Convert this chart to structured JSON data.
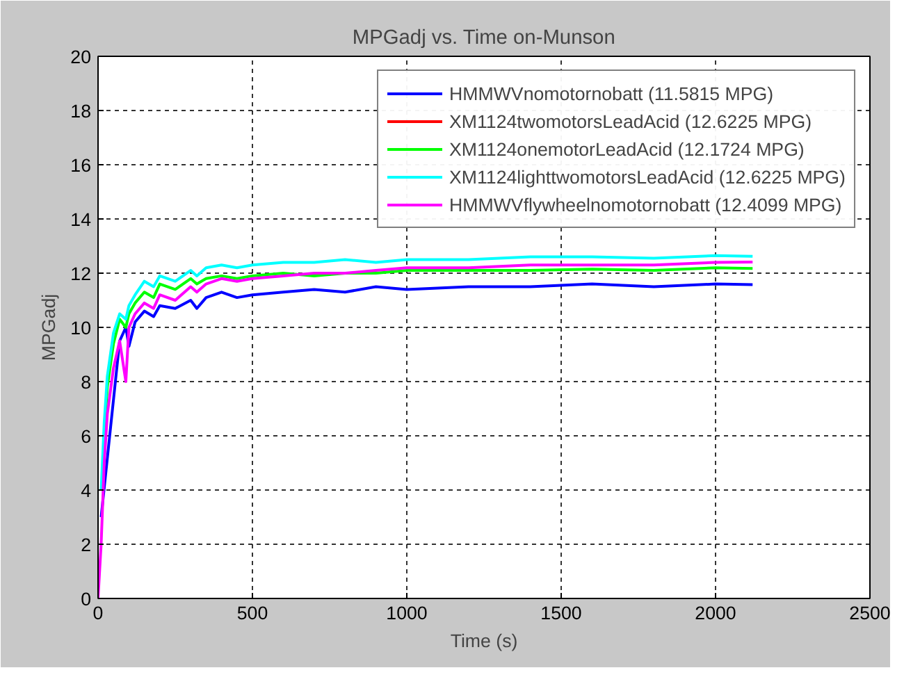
{
  "chart_data": {
    "type": "line",
    "title": "MPGadj vs. Time on-Munson",
    "xlabel": "Time (s)",
    "ylabel": "MPGadj",
    "x": [
      0,
      10,
      20,
      30,
      50,
      70,
      90,
      100,
      120,
      150,
      180,
      200,
      250,
      300,
      320,
      350,
      400,
      450,
      500,
      600,
      700,
      800,
      900,
      1000,
      1200,
      1400,
      1600,
      1800,
      2000,
      2120
    ],
    "xlim": [
      0,
      2500
    ],
    "xticks": [
      0,
      500,
      1000,
      1500,
      2000,
      2500
    ],
    "ylim": [
      0,
      20
    ],
    "yticks": [
      0,
      2,
      4,
      6,
      8,
      10,
      12,
      14,
      16,
      18,
      20
    ],
    "grid": true,
    "legend": "top right",
    "line_style": "solid",
    "marker": "none",
    "series": [
      {
        "name": "HMMWVnomotornobatt (11.5815 MPG)",
        "color": "#0000ff",
        "values": [
          null,
          3,
          null,
          null,
          null,
          9.5,
          10,
          9.3,
          10.2,
          10.6,
          10.4,
          10.8,
          10.7,
          11.0,
          10.7,
          11.1,
          11.3,
          11.1,
          11.2,
          11.3,
          11.4,
          11.3,
          11.5,
          11.4,
          11.5,
          11.5,
          11.6,
          11.5,
          11.6,
          11.58
        ]
      },
      {
        "name": "XM1124twomotorsLeadAcid (12.6225 MPG)",
        "color": "#ff0000",
        "values": [
          null,
          null,
          null,
          null,
          null,
          null,
          null,
          null,
          null,
          null,
          null,
          null,
          null,
          null,
          null,
          null,
          null,
          null,
          null,
          null,
          null,
          null,
          null,
          null,
          null,
          null,
          null,
          null,
          null,
          null
        ]
      },
      {
        "name": "XM1124onemotorLeadAcid (12.1724 MPG)",
        "color": "#00ff00",
        "values": [
          null,
          null,
          6,
          7.8,
          9.4,
          10.3,
          10,
          10.5,
          10.9,
          11.3,
          11.1,
          11.6,
          11.4,
          11.8,
          11.6,
          11.8,
          11.9,
          11.8,
          11.9,
          12.0,
          11.9,
          12.0,
          12.0,
          12.1,
          12.1,
          12.1,
          12.15,
          12.1,
          12.2,
          12.17
        ]
      },
      {
        "name": "XM1124lighttwomotorsLeadAcid (12.6225 MPG)",
        "color": "#00ffff",
        "values": [
          null,
          4,
          6.5,
          8.2,
          9.8,
          10.5,
          10.3,
          10.8,
          11.2,
          11.7,
          11.5,
          11.9,
          11.7,
          12.1,
          11.9,
          12.2,
          12.3,
          12.2,
          12.3,
          12.4,
          12.4,
          12.5,
          12.4,
          12.5,
          12.5,
          12.6,
          12.6,
          12.55,
          12.65,
          12.62
        ]
      },
      {
        "name": "HMMWVflywheelnomotornobatt (12.4099 MPG)",
        "color": "#ff00ff",
        "values": [
          0,
          2,
          5,
          6.8,
          8.5,
          9.5,
          8.0,
          10,
          10.5,
          10.9,
          10.7,
          11.2,
          11.0,
          11.5,
          11.3,
          11.6,
          11.8,
          11.7,
          11.8,
          11.9,
          12.0,
          12.0,
          12.1,
          12.2,
          12.2,
          12.3,
          12.3,
          12.3,
          12.4,
          12.41
        ]
      }
    ]
  }
}
